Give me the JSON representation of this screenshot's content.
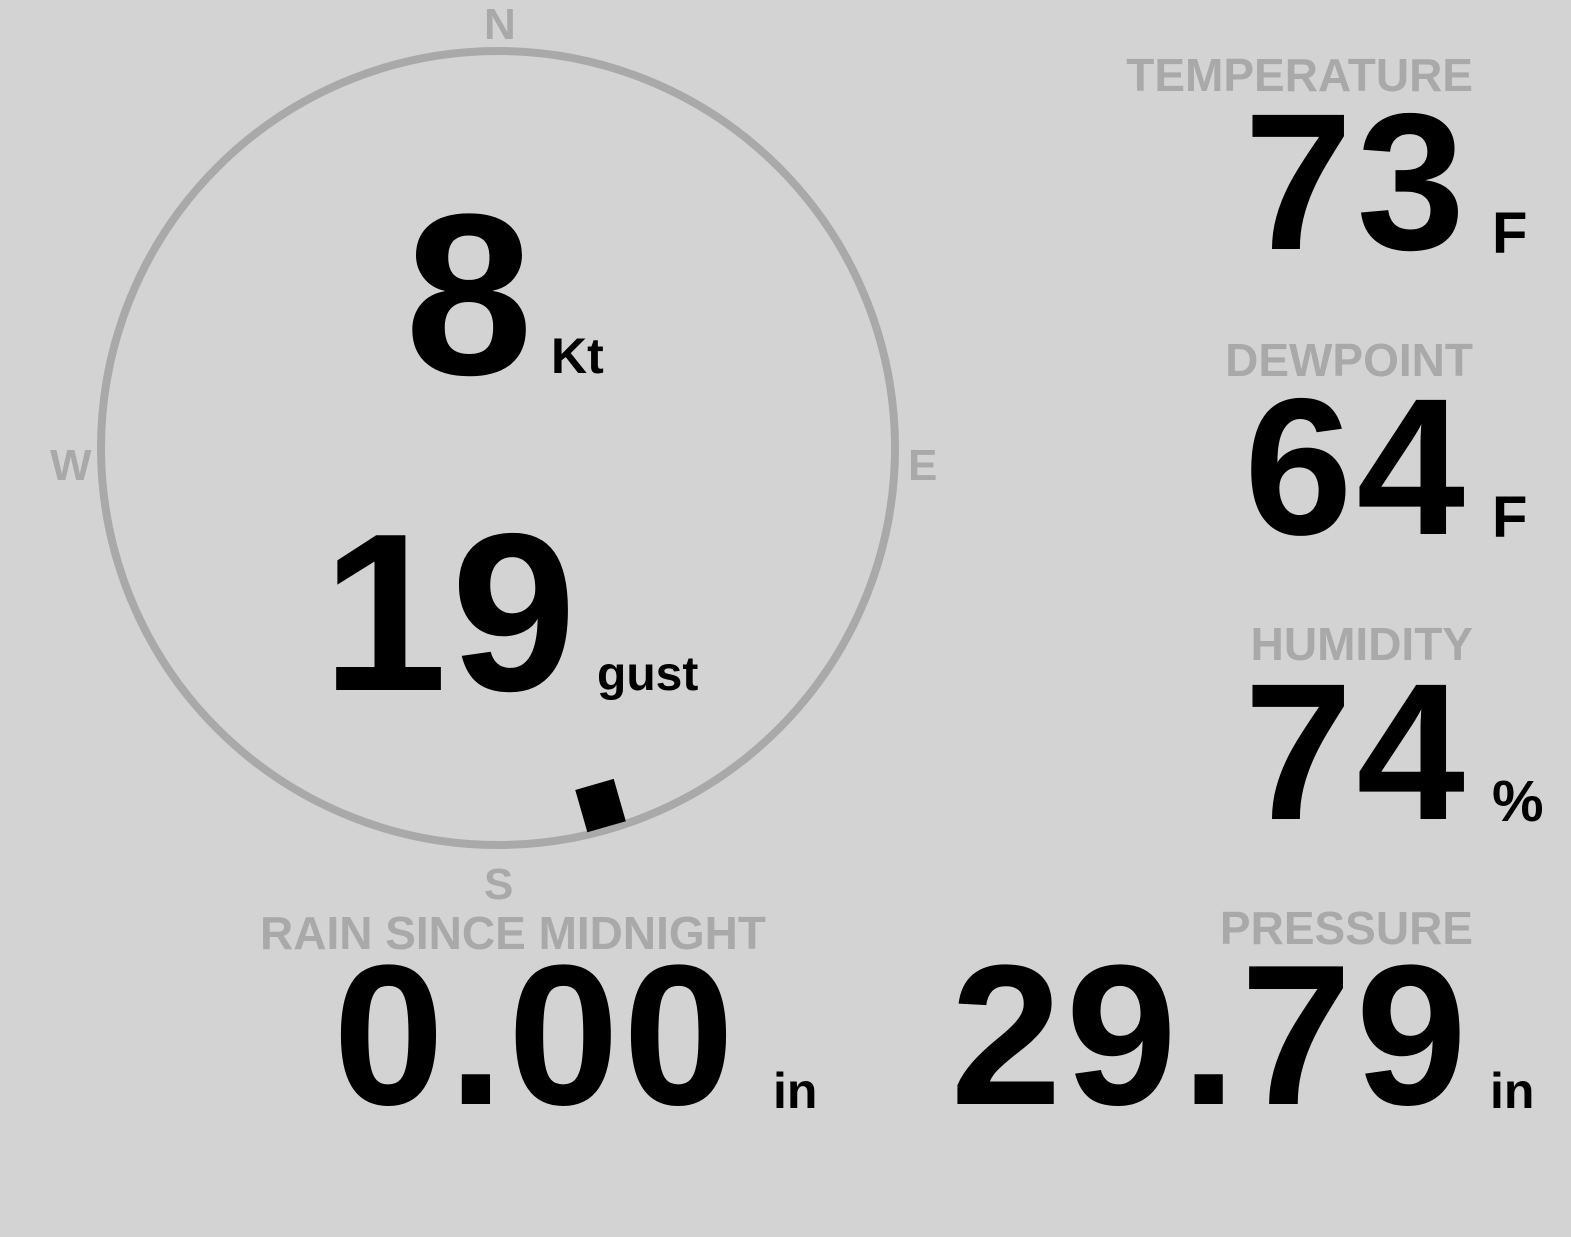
{
  "colors": {
    "background": "#d3d3d3",
    "label": "#a9a9a9",
    "value": "#000000",
    "ring": "#a9a9a9"
  },
  "wind": {
    "compass": {
      "n": "N",
      "e": "E",
      "s": "S",
      "w": "W"
    },
    "direction_deg": 164,
    "speed": "8",
    "speed_unit": "Kt",
    "gust": "19",
    "gust_unit": "gust"
  },
  "temperature": {
    "label": "TEMPERATURE",
    "value": "73",
    "unit": "F"
  },
  "dewpoint": {
    "label": "DEWPOINT",
    "value": "64",
    "unit": "F"
  },
  "humidity": {
    "label": "HUMIDITY",
    "value": "74",
    "unit": "%"
  },
  "pressure": {
    "label": "PRESSURE",
    "value": "29.79",
    "unit": "in"
  },
  "rain": {
    "label": "RAIN SINCE MIDNIGHT",
    "value": "0.00",
    "unit": "in"
  }
}
